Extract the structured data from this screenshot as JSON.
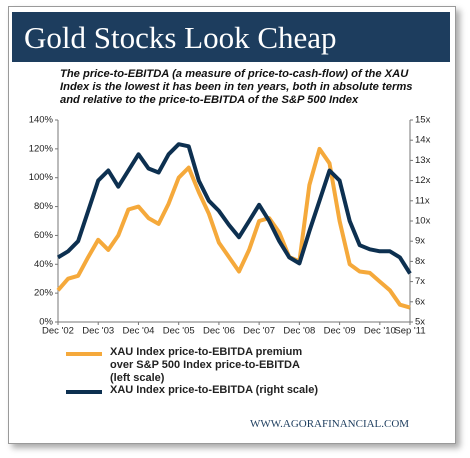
{
  "chart_data": {
    "type": "line",
    "title": "Gold Stocks Look Cheap",
    "subtitle": "The price-to-EBITDA (a measure of price-to-cash-flow) of the XAU Index is the lowest it has been in ten years, both in absolute terms and relative to the price-to-EBITDA of the S&P 500 Index",
    "source": "WWW.AGORAFINANCIAL.COM",
    "categories": [
      "Dec '02",
      null,
      null,
      null,
      "Dec '03",
      null,
      null,
      null,
      "Dec '04",
      null,
      null,
      null,
      "Dec '05",
      null,
      null,
      null,
      "Dec '06",
      null,
      null,
      null,
      "Dec '07",
      null,
      null,
      null,
      "Dec '08",
      null,
      null,
      null,
      "Dec '09",
      null,
      null,
      null,
      "Dec '10",
      null,
      null,
      "Sep '11"
    ],
    "series": [
      {
        "name": "XAU Index price-to-EBITDA premium over S&P 500 Index price-to-EBITDA (left scale)",
        "color": "#f5a93b",
        "axis": "y",
        "values": [
          22,
          30,
          32,
          45,
          57,
          50,
          60,
          78,
          80,
          72,
          68,
          82,
          100,
          107,
          90,
          75,
          55,
          45,
          35,
          50,
          70,
          72,
          62,
          45,
          42,
          95,
          120,
          110,
          70,
          40,
          35,
          34,
          28,
          22,
          12,
          10
        ]
      },
      {
        "name": "XAU Index price-to-EBITDA (right scale)",
        "color": "#0d3050",
        "axis": "y2",
        "values": [
          8.2,
          8.5,
          9.0,
          10.5,
          12.0,
          12.5,
          11.7,
          12.5,
          13.3,
          12.6,
          12.4,
          13.3,
          13.8,
          13.7,
          12.0,
          11.0,
          10.5,
          9.8,
          9.2,
          10.0,
          10.8,
          10.0,
          9.0,
          8.2,
          7.9,
          9.5,
          11.0,
          12.5,
          12.0,
          10.0,
          8.8,
          8.6,
          8.5,
          8.5,
          8.2,
          7.4
        ]
      }
    ],
    "ylim": [
      0,
      140
    ],
    "yticks": [
      {
        "value": 0,
        "label": "0%"
      },
      {
        "value": 20,
        "label": "20%"
      },
      {
        "value": 40,
        "label": "40%"
      },
      {
        "value": 60,
        "label": "60%"
      },
      {
        "value": 80,
        "label": "80%"
      },
      {
        "value": 100,
        "label": "100%"
      },
      {
        "value": 120,
        "label": "120%"
      },
      {
        "value": 140,
        "label": "140%"
      }
    ],
    "y2lim": [
      5,
      15
    ],
    "y2ticks": [
      {
        "value": 5,
        "label": "5x"
      },
      {
        "value": 6,
        "label": "6x"
      },
      {
        "value": 7,
        "label": "7x"
      },
      {
        "value": 8,
        "label": "8x"
      },
      {
        "value": 9,
        "label": "9x"
      },
      {
        "value": 10,
        "label": "10x"
      },
      {
        "value": 11,
        "label": "11x"
      },
      {
        "value": 12,
        "label": "12x"
      },
      {
        "value": 13,
        "label": "13x"
      },
      {
        "value": 14,
        "label": "14x"
      },
      {
        "value": 15,
        "label": "15x"
      }
    ],
    "grid": false
  }
}
